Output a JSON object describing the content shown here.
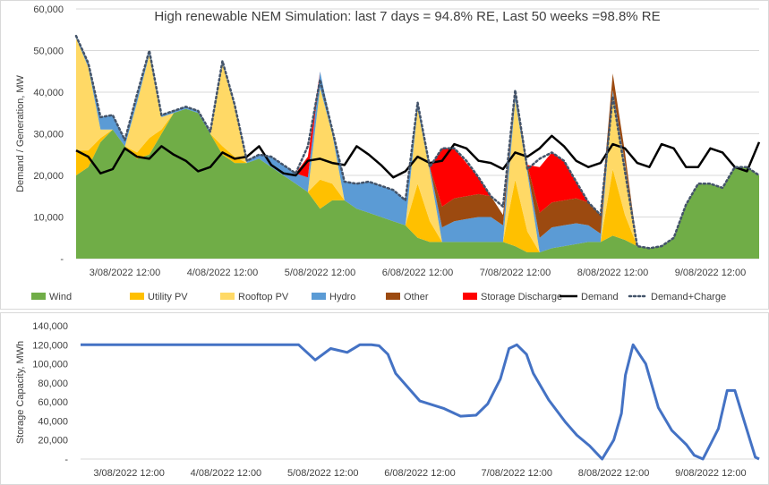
{
  "chart_data": [
    {
      "type": "area",
      "title": "High renewable NEM Simulation: last 7 days = 94.8% RE, Last 50 weeks =98.8% RE",
      "ylabel": "Demand / Generation, MW",
      "ylim": [
        0,
        60000
      ],
      "yticks": [
        "-",
        "10,000",
        "20,000",
        "30,000",
        "40,000",
        "50,000",
        "60,000"
      ],
      "xlim": [
        3.0,
        10.0
      ],
      "x_unit": "days (1 = 1 Aug 2022 00:00)",
      "xticks": [
        "3/08/2022 12:00",
        "4/08/2022 12:00",
        "5/08/2022 12:00",
        "6/08/2022 12:00",
        "7/08/2022 12:00",
        "8/08/2022 12:00",
        "9/08/2022 12:00"
      ],
      "xtick_values": [
        3.5,
        4.5,
        5.5,
        6.5,
        7.5,
        8.5,
        9.5
      ],
      "legend_position": "bottom",
      "x": [
        3.0,
        3.125,
        3.25,
        3.375,
        3.5,
        3.625,
        3.75,
        3.875,
        4.0,
        4.125,
        4.25,
        4.375,
        4.5,
        4.625,
        4.75,
        4.875,
        5.0,
        5.125,
        5.25,
        5.375,
        5.5,
        5.625,
        5.75,
        5.875,
        6.0,
        6.125,
        6.25,
        6.375,
        6.5,
        6.625,
        6.75,
        6.875,
        7.0,
        7.125,
        7.25,
        7.375,
        7.5,
        7.625,
        7.75,
        7.875,
        8.0,
        8.125,
        8.25,
        8.375,
        8.5,
        8.625,
        8.75,
        8.875,
        9.0,
        9.125,
        9.25,
        9.375,
        9.5,
        9.625,
        9.75,
        9.875,
        10.0
      ],
      "series": [
        {
          "name": "Wind",
          "color": "#70AD47",
          "values": [
            20000,
            22000,
            28000,
            31000,
            27000,
            24000,
            25000,
            30000,
            35000,
            36000,
            35000,
            30000,
            25000,
            23000,
            23000,
            24000,
            22000,
            20000,
            18000,
            16000,
            12000,
            14000,
            14000,
            12000,
            11000,
            10000,
            9000,
            8000,
            5000,
            4000,
            4000,
            4000,
            4000,
            4000,
            4000,
            4000,
            3000,
            1500,
            1500,
            2500,
            3000,
            3500,
            4000,
            4000,
            5500,
            4500,
            3000,
            2500,
            3000,
            5000,
            13000,
            18000,
            18000,
            17000,
            22000,
            22000,
            20000
          ]
        },
        {
          "name": "Utility PV",
          "color": "#FFC000",
          "values": [
            6000,
            4000,
            1000,
            0,
            0,
            1500,
            4000,
            1000,
            0,
            0,
            0,
            0,
            2000,
            1500,
            0,
            0,
            0,
            0,
            0,
            0,
            7000,
            4000,
            0,
            0,
            0,
            0,
            0,
            0,
            13000,
            5000,
            0,
            0,
            0,
            0,
            0,
            0,
            16000,
            5000,
            0,
            0,
            0,
            0,
            0,
            0,
            16000,
            6000,
            0,
            0,
            0,
            0,
            0,
            0,
            0,
            0,
            0,
            0,
            0
          ]
        },
        {
          "name": "Rooftop PV",
          "color": "#FFD966",
          "values": [
            27000,
            20000,
            2000,
            0,
            0,
            12000,
            20000,
            3000,
            0,
            0,
            0,
            0,
            20000,
            12000,
            0,
            0,
            0,
            0,
            0,
            0,
            22000,
            12000,
            0,
            0,
            0,
            0,
            0,
            0,
            18000,
            12000,
            0,
            0,
            0,
            0,
            0,
            0,
            19000,
            14000,
            0,
            0,
            0,
            0,
            0,
            0,
            18000,
            12000,
            0,
            0,
            0,
            0,
            0,
            0,
            0,
            0,
            0,
            0,
            0
          ]
        },
        {
          "name": "Hydro",
          "color": "#5B9BD5",
          "values": [
            500,
            1000,
            3000,
            3500,
            1500,
            1500,
            1000,
            500,
            500,
            500,
            500,
            500,
            500,
            500,
            500,
            1000,
            2500,
            2500,
            2500,
            3500,
            4000,
            1000,
            4500,
            6000,
            7500,
            7500,
            7500,
            6000,
            1500,
            1000,
            3500,
            5000,
            5500,
            6000,
            6000,
            4000,
            1500,
            1000,
            3500,
            5000,
            5000,
            5000,
            4000,
            2000,
            1000,
            500,
            0,
            0,
            0,
            0,
            0,
            0,
            0,
            0,
            0,
            0,
            0
          ]
        },
        {
          "name": "Other",
          "color": "#9C4A10",
          "values": [
            0,
            0,
            0,
            0,
            0,
            0,
            0,
            0,
            0,
            0,
            0,
            0,
            0,
            0,
            0,
            0,
            0,
            0,
            0,
            0,
            0,
            0,
            0,
            0,
            0,
            0,
            0,
            0,
            0,
            0,
            5000,
            5500,
            5500,
            5500,
            5000,
            2500,
            1000,
            1000,
            6000,
            6000,
            6000,
            6000,
            5500,
            4500,
            4000,
            2500,
            0,
            0,
            0,
            0,
            0,
            0,
            0,
            0,
            0,
            0,
            0
          ]
        },
        {
          "name": "Storage Discharge",
          "color": "#FF0000",
          "values": [
            0,
            0,
            0,
            0,
            0,
            0,
            0,
            0,
            0,
            0,
            0,
            0,
            0,
            0,
            0,
            0,
            0,
            0,
            0,
            5000,
            0,
            0,
            0,
            0,
            0,
            0,
            0,
            0,
            0,
            0,
            14000,
            12000,
            8000,
            4000,
            0,
            0,
            0,
            0,
            11000,
            12000,
            9500,
            4000,
            0,
            0,
            0,
            0,
            0,
            0,
            0,
            0,
            0,
            0,
            0,
            0,
            0,
            0,
            0
          ]
        }
      ],
      "lines": [
        {
          "name": "Demand",
          "color": "#000000",
          "style": "solid",
          "values": [
            26000,
            24500,
            20500,
            21500,
            26500,
            24500,
            24000,
            27000,
            25000,
            23500,
            21000,
            22000,
            25500,
            24000,
            24500,
            27000,
            22500,
            20500,
            20000,
            23500,
            24000,
            23000,
            22500,
            27000,
            25000,
            22500,
            19500,
            21000,
            24500,
            23000,
            23500,
            27500,
            26500,
            23500,
            23000,
            21500,
            25500,
            24500,
            26500,
            29500,
            27000,
            23500,
            22000,
            23000,
            27500,
            26500,
            23000,
            22000,
            27500,
            26500,
            22000,
            22000,
            26500,
            25500,
            22000,
            21000,
            28000
          ]
        },
        {
          "name": "Demand+Charge",
          "color": "#44546A",
          "style": "dotted",
          "values": [
            53500,
            47000,
            34000,
            34500,
            28500,
            39500,
            50000,
            34500,
            35500,
            36500,
            35500,
            30500,
            47500,
            37000,
            23500,
            25000,
            24500,
            22500,
            20500,
            27000,
            43000,
            31000,
            18500,
            18000,
            18500,
            17500,
            16500,
            14000,
            37500,
            22000,
            26500,
            26500,
            23500,
            19500,
            15000,
            12500,
            40500,
            21500,
            24000,
            25500,
            23500,
            18500,
            13500,
            10500,
            39000,
            21000,
            3000,
            2500,
            3000,
            5000,
            13000,
            18000,
            18000,
            17000,
            22000,
            22000,
            20000
          ]
        }
      ]
    },
    {
      "type": "line",
      "title": "",
      "ylabel": "Storage Capacity, MWh",
      "ylim": [
        0,
        140000
      ],
      "yticks": [
        "-",
        "20,000",
        "40,000",
        "60,000",
        "80,000",
        "100,000",
        "120,000",
        "140,000"
      ],
      "xlim": [
        3.0,
        10.0
      ],
      "xticks": [
        "3/08/2022 12:00",
        "4/08/2022 12:00",
        "5/08/2022 12:00",
        "6/08/2022 12:00",
        "7/08/2022 12:00",
        "8/08/2022 12:00",
        "9/08/2022 12:00"
      ],
      "xtick_values": [
        3.5,
        4.5,
        5.5,
        6.5,
        7.5,
        8.5,
        9.5
      ],
      "series": [
        {
          "name": "",
          "color": "#4472C4",
          "x": [
            3.0,
            5.25,
            5.42,
            5.58,
            5.75,
            5.88,
            6.0,
            6.08,
            6.17,
            6.25,
            6.5,
            6.75,
            6.92,
            7.08,
            7.2,
            7.33,
            7.42,
            7.5,
            7.6,
            7.67,
            7.83,
            8.0,
            8.12,
            8.25,
            8.38,
            8.5,
            8.58,
            8.62,
            8.7,
            8.83,
            8.96,
            9.1,
            9.25,
            9.33,
            9.42,
            9.5,
            9.58,
            9.67,
            9.75,
            9.83,
            9.96,
            10.0
          ],
          "values": [
            120000,
            120000,
            104000,
            116000,
            112000,
            120000,
            120000,
            119000,
            110000,
            90000,
            61000,
            53000,
            45000,
            46000,
            58000,
            84000,
            116000,
            120000,
            110000,
            90000,
            62000,
            39000,
            25000,
            14000,
            0,
            20000,
            48000,
            88000,
            120000,
            100000,
            54000,
            30000,
            15000,
            4000,
            0,
            16000,
            32000,
            72000,
            72000,
            45000,
            2000,
            0
          ]
        }
      ]
    }
  ],
  "legend": [
    {
      "label": "Wind",
      "color": "#70AD47",
      "kind": "box"
    },
    {
      "label": "Utility PV",
      "color": "#FFC000",
      "kind": "box"
    },
    {
      "label": "Rooftop PV",
      "color": "#FFD966",
      "kind": "box"
    },
    {
      "label": "Hydro",
      "color": "#5B9BD5",
      "kind": "box"
    },
    {
      "label": "Other",
      "color": "#9C4A10",
      "kind": "box"
    },
    {
      "label": "Storage Discharge",
      "color": "#FF0000",
      "kind": "box"
    },
    {
      "label": "Demand",
      "color": "#000000",
      "kind": "line"
    },
    {
      "label": "Demand+Charge",
      "color": "#44546A",
      "kind": "dotted"
    }
  ]
}
